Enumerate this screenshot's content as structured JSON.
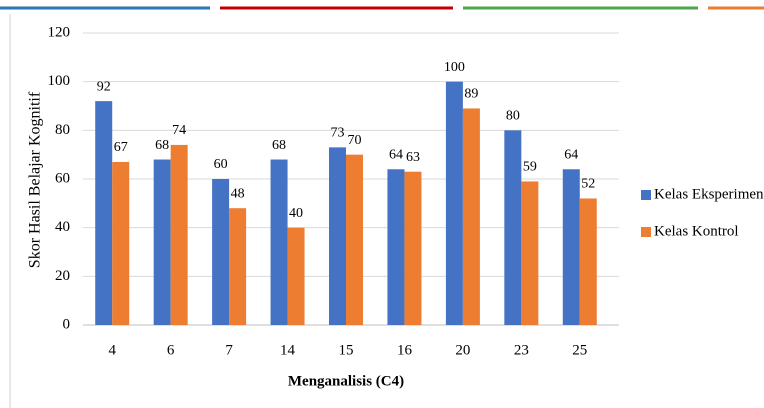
{
  "chart_data": {
    "type": "bar",
    "y_label": "Skor Hasil Belajar Kognitif",
    "x_label": "Menganalisis (C4)",
    "categories": [
      "4",
      "6",
      "7",
      "14",
      "15",
      "16",
      "20",
      "23",
      "25"
    ],
    "series": [
      {
        "name": "Kelas Eksperimen",
        "color": "#4472c4",
        "values": [
          92,
          68,
          60,
          68,
          73,
          64,
          100,
          80,
          64
        ]
      },
      {
        "name": "Kelas Kontrol",
        "color": "#ed7d31",
        "values": [
          67,
          74,
          48,
          40,
          70,
          63,
          89,
          59,
          52
        ]
      }
    ],
    "ylim": [
      0,
      120
    ],
    "yticks": [
      0,
      20,
      40,
      60,
      80,
      100,
      120
    ],
    "grid": true,
    "legend": "right"
  }
}
